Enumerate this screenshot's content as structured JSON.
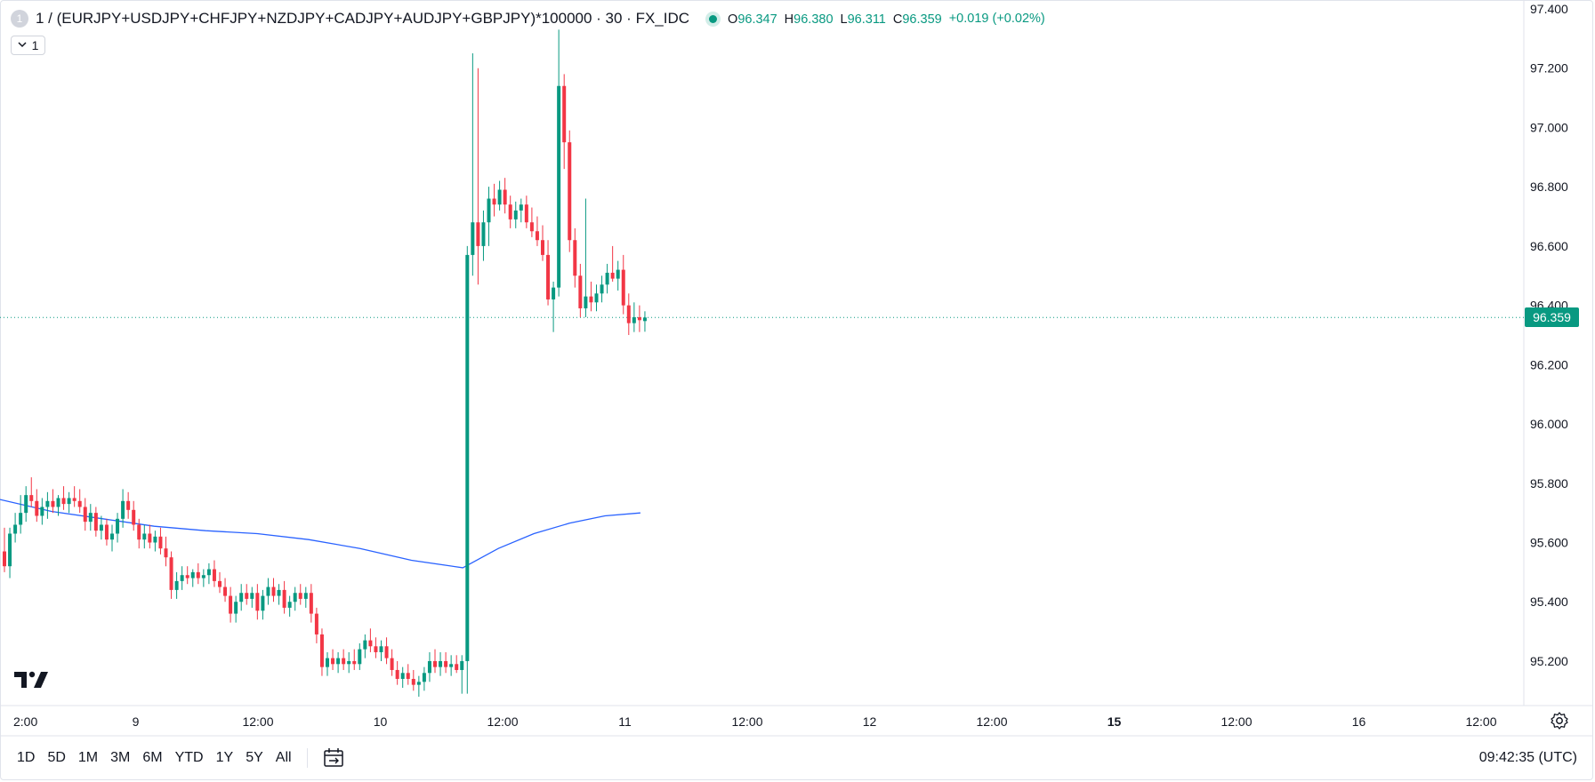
{
  "header": {
    "badge": "1",
    "symbol": "1 / (EURJPY+USDJPY+CHFJPY+NZDJPY+CADJPY+AUDJPY+GBPJPY)*100000 · 30 · FX_IDC",
    "ohlc": [
      {
        "k": "O",
        "v": "96.347"
      },
      {
        "k": "H",
        "v": "96.380"
      },
      {
        "k": "L",
        "v": "96.311"
      },
      {
        "k": "C",
        "v": "96.359"
      }
    ],
    "change": "+0.019 (+0.02%)"
  },
  "interval_toggle": {
    "label": "1",
    "chevron": "chevron-down-icon"
  },
  "last_price": "96.359",
  "colors": {
    "up": "#089981",
    "down": "#f23645",
    "ma": "#2962ff",
    "grid": "#f0f3fa",
    "axis_text": "#131722"
  },
  "bottom_bar": {
    "ranges": [
      "1D",
      "5D",
      "1M",
      "3M",
      "6M",
      "YTD",
      "1Y",
      "5Y",
      "All"
    ],
    "calendar_icon": "calendar-icon",
    "clock": "09:42:35 (UTC)"
  },
  "settings_icon": "gear-icon",
  "logo": "tradingview-logo",
  "chart_data": {
    "type": "candlestick",
    "interval_minutes": 30,
    "ylim": [
      95.05,
      97.43
    ],
    "y_ticks": [
      "97.400",
      "97.200",
      "97.000",
      "96.800",
      "96.600",
      "96.400",
      "96.200",
      "96.000",
      "95.800",
      "95.600",
      "95.400",
      "95.200"
    ],
    "x_ticks": [
      {
        "label": "2:00",
        "bold": false
      },
      {
        "label": "9",
        "bold": false
      },
      {
        "label": "12:00",
        "bold": false
      },
      {
        "label": "10",
        "bold": false
      },
      {
        "label": "12:00",
        "bold": false
      },
      {
        "label": "11",
        "bold": false
      },
      {
        "label": "12:00",
        "bold": false
      },
      {
        "label": "12",
        "bold": false
      },
      {
        "label": "12:00",
        "bold": false
      },
      {
        "label": "15",
        "bold": true
      },
      {
        "label": "12:00",
        "bold": false
      },
      {
        "label": "16",
        "bold": false
      },
      {
        "label": "12:00",
        "bold": false
      }
    ],
    "last_price": 96.359,
    "moving_average": [
      95.745,
      95.705,
      95.68,
      95.655,
      95.64,
      95.63,
      95.61,
      95.58,
      95.54,
      95.515,
      95.58,
      95.63,
      95.665,
      95.69,
      95.7
    ],
    "candles": [
      {
        "o": 95.57,
        "h": 95.65,
        "l": 95.5,
        "c": 95.52
      },
      {
        "o": 95.52,
        "h": 95.65,
        "l": 95.48,
        "c": 95.63
      },
      {
        "o": 95.63,
        "h": 95.7,
        "l": 95.6,
        "c": 95.66
      },
      {
        "o": 95.66,
        "h": 95.76,
        "l": 95.63,
        "c": 95.7
      },
      {
        "o": 95.7,
        "h": 95.79,
        "l": 95.67,
        "c": 95.76
      },
      {
        "o": 95.76,
        "h": 95.82,
        "l": 95.72,
        "c": 95.74
      },
      {
        "o": 95.74,
        "h": 95.78,
        "l": 95.67,
        "c": 95.69
      },
      {
        "o": 95.69,
        "h": 95.75,
        "l": 95.66,
        "c": 95.72
      },
      {
        "o": 95.72,
        "h": 95.77,
        "l": 95.68,
        "c": 95.74
      },
      {
        "o": 95.74,
        "h": 95.78,
        "l": 95.7,
        "c": 95.72
      },
      {
        "o": 95.72,
        "h": 95.76,
        "l": 95.69,
        "c": 95.75
      },
      {
        "o": 95.75,
        "h": 95.79,
        "l": 95.71,
        "c": 95.73
      },
      {
        "o": 95.73,
        "h": 95.77,
        "l": 95.7,
        "c": 95.75
      },
      {
        "o": 95.75,
        "h": 95.79,
        "l": 95.72,
        "c": 95.74
      },
      {
        "o": 95.74,
        "h": 95.78,
        "l": 95.7,
        "c": 95.72
      },
      {
        "o": 95.72,
        "h": 95.75,
        "l": 95.64,
        "c": 95.67
      },
      {
        "o": 95.67,
        "h": 95.73,
        "l": 95.64,
        "c": 95.7
      },
      {
        "o": 95.7,
        "h": 95.72,
        "l": 95.62,
        "c": 95.64
      },
      {
        "o": 95.64,
        "h": 95.69,
        "l": 95.61,
        "c": 95.66
      },
      {
        "o": 95.66,
        "h": 95.68,
        "l": 95.59,
        "c": 95.61
      },
      {
        "o": 95.61,
        "h": 95.66,
        "l": 95.57,
        "c": 95.63
      },
      {
        "o": 95.63,
        "h": 95.7,
        "l": 95.6,
        "c": 95.68
      },
      {
        "o": 95.68,
        "h": 95.78,
        "l": 95.65,
        "c": 95.74
      },
      {
        "o": 95.74,
        "h": 95.77,
        "l": 95.68,
        "c": 95.71
      },
      {
        "o": 95.71,
        "h": 95.74,
        "l": 95.64,
        "c": 95.66
      },
      {
        "o": 95.66,
        "h": 95.68,
        "l": 95.58,
        "c": 95.61
      },
      {
        "o": 95.61,
        "h": 95.66,
        "l": 95.58,
        "c": 95.63
      },
      {
        "o": 95.63,
        "h": 95.66,
        "l": 95.58,
        "c": 95.6
      },
      {
        "o": 95.6,
        "h": 95.64,
        "l": 95.57,
        "c": 95.62
      },
      {
        "o": 95.62,
        "h": 95.65,
        "l": 95.56,
        "c": 95.58
      },
      {
        "o": 95.58,
        "h": 95.62,
        "l": 95.52,
        "c": 95.55
      },
      {
        "o": 95.55,
        "h": 95.57,
        "l": 95.41,
        "c": 95.44
      },
      {
        "o": 95.44,
        "h": 95.5,
        "l": 95.41,
        "c": 95.47
      },
      {
        "o": 95.47,
        "h": 95.52,
        "l": 95.44,
        "c": 95.49
      },
      {
        "o": 95.49,
        "h": 95.52,
        "l": 95.46,
        "c": 95.48
      },
      {
        "o": 95.48,
        "h": 95.51,
        "l": 95.45,
        "c": 95.5
      },
      {
        "o": 95.5,
        "h": 95.53,
        "l": 95.46,
        "c": 95.48
      },
      {
        "o": 95.48,
        "h": 95.51,
        "l": 95.45,
        "c": 95.49
      },
      {
        "o": 95.49,
        "h": 95.53,
        "l": 95.46,
        "c": 95.51
      },
      {
        "o": 95.51,
        "h": 95.54,
        "l": 95.45,
        "c": 95.47
      },
      {
        "o": 95.47,
        "h": 95.5,
        "l": 95.43,
        "c": 95.45
      },
      {
        "o": 95.45,
        "h": 95.48,
        "l": 95.4,
        "c": 95.42
      },
      {
        "o": 95.42,
        "h": 95.45,
        "l": 95.33,
        "c": 95.36
      },
      {
        "o": 95.36,
        "h": 95.42,
        "l": 95.33,
        "c": 95.4
      },
      {
        "o": 95.4,
        "h": 95.46,
        "l": 95.37,
        "c": 95.43
      },
      {
        "o": 95.43,
        "h": 95.46,
        "l": 95.39,
        "c": 95.41
      },
      {
        "o": 95.41,
        "h": 95.45,
        "l": 95.38,
        "c": 95.43
      },
      {
        "o": 95.43,
        "h": 95.46,
        "l": 95.34,
        "c": 95.37
      },
      {
        "o": 95.37,
        "h": 95.44,
        "l": 95.34,
        "c": 95.42
      },
      {
        "o": 95.42,
        "h": 95.48,
        "l": 95.39,
        "c": 95.45
      },
      {
        "o": 95.45,
        "h": 95.48,
        "l": 95.4,
        "c": 95.42
      },
      {
        "o": 95.42,
        "h": 95.46,
        "l": 95.39,
        "c": 95.44
      },
      {
        "o": 95.44,
        "h": 95.47,
        "l": 95.36,
        "c": 95.38
      },
      {
        "o": 95.38,
        "h": 95.42,
        "l": 95.35,
        "c": 95.4
      },
      {
        "o": 95.4,
        "h": 95.45,
        "l": 95.37,
        "c": 95.43
      },
      {
        "o": 95.43,
        "h": 95.46,
        "l": 95.39,
        "c": 95.41
      },
      {
        "o": 95.41,
        "h": 95.45,
        "l": 95.38,
        "c": 95.43
      },
      {
        "o": 95.43,
        "h": 95.46,
        "l": 95.33,
        "c": 95.36
      },
      {
        "o": 95.36,
        "h": 95.38,
        "l": 95.26,
        "c": 95.29
      },
      {
        "o": 95.29,
        "h": 95.31,
        "l": 95.15,
        "c": 95.18
      },
      {
        "o": 95.18,
        "h": 95.23,
        "l": 95.15,
        "c": 95.21
      },
      {
        "o": 95.21,
        "h": 95.24,
        "l": 95.17,
        "c": 95.19
      },
      {
        "o": 95.19,
        "h": 95.23,
        "l": 95.16,
        "c": 95.21
      },
      {
        "o": 95.21,
        "h": 95.24,
        "l": 95.17,
        "c": 95.19
      },
      {
        "o": 95.19,
        "h": 95.23,
        "l": 95.16,
        "c": 95.2
      },
      {
        "o": 95.2,
        "h": 95.24,
        "l": 95.17,
        "c": 95.19
      },
      {
        "o": 95.19,
        "h": 95.26,
        "l": 95.17,
        "c": 95.24
      },
      {
        "o": 95.24,
        "h": 95.29,
        "l": 95.21,
        "c": 95.27
      },
      {
        "o": 95.27,
        "h": 95.31,
        "l": 95.23,
        "c": 95.25
      },
      {
        "o": 95.25,
        "h": 95.28,
        "l": 95.21,
        "c": 95.23
      },
      {
        "o": 95.23,
        "h": 95.27,
        "l": 95.2,
        "c": 95.25
      },
      {
        "o": 95.25,
        "h": 95.28,
        "l": 95.19,
        "c": 95.21
      },
      {
        "o": 95.21,
        "h": 95.24,
        "l": 95.15,
        "c": 95.17
      },
      {
        "o": 95.17,
        "h": 95.2,
        "l": 95.12,
        "c": 95.14
      },
      {
        "o": 95.14,
        "h": 95.18,
        "l": 95.11,
        "c": 95.16
      },
      {
        "o": 95.16,
        "h": 95.19,
        "l": 95.12,
        "c": 95.14
      },
      {
        "o": 95.14,
        "h": 95.17,
        "l": 95.1,
        "c": 95.12
      },
      {
        "o": 95.12,
        "h": 95.15,
        "l": 95.08,
        "c": 95.13
      },
      {
        "o": 95.13,
        "h": 95.18,
        "l": 95.1,
        "c": 95.16
      },
      {
        "o": 95.16,
        "h": 95.23,
        "l": 95.13,
        "c": 95.2
      },
      {
        "o": 95.2,
        "h": 95.24,
        "l": 95.16,
        "c": 95.18
      },
      {
        "o": 95.18,
        "h": 95.23,
        "l": 95.15,
        "c": 95.2
      },
      {
        "o": 95.2,
        "h": 95.23,
        "l": 95.16,
        "c": 95.18
      },
      {
        "o": 95.18,
        "h": 95.22,
        "l": 95.15,
        "c": 95.19
      },
      {
        "o": 95.19,
        "h": 95.22,
        "l": 95.16,
        "c": 95.17
      },
      {
        "o": 95.17,
        "h": 95.22,
        "l": 95.09,
        "c": 95.2
      },
      {
        "o": 95.2,
        "h": 96.6,
        "l": 95.09,
        "c": 96.57
      },
      {
        "o": 96.57,
        "h": 97.25,
        "l": 96.5,
        "c": 96.68
      },
      {
        "o": 96.68,
        "h": 97.2,
        "l": 96.47,
        "c": 96.6
      },
      {
        "o": 96.6,
        "h": 96.72,
        "l": 96.55,
        "c": 96.68
      },
      {
        "o": 96.68,
        "h": 96.8,
        "l": 96.6,
        "c": 96.76
      },
      {
        "o": 96.76,
        "h": 96.81,
        "l": 96.7,
        "c": 96.74
      },
      {
        "o": 96.74,
        "h": 96.82,
        "l": 96.72,
        "c": 96.79
      },
      {
        "o": 96.79,
        "h": 96.83,
        "l": 96.71,
        "c": 96.74
      },
      {
        "o": 96.74,
        "h": 96.77,
        "l": 96.66,
        "c": 96.69
      },
      {
        "o": 96.69,
        "h": 96.75,
        "l": 96.66,
        "c": 96.72
      },
      {
        "o": 96.72,
        "h": 96.76,
        "l": 96.68,
        "c": 96.74
      },
      {
        "o": 96.74,
        "h": 96.77,
        "l": 96.66,
        "c": 96.68
      },
      {
        "o": 96.68,
        "h": 96.73,
        "l": 96.63,
        "c": 96.65
      },
      {
        "o": 96.65,
        "h": 96.7,
        "l": 96.6,
        "c": 96.62
      },
      {
        "o": 96.62,
        "h": 96.67,
        "l": 96.55,
        "c": 96.57
      },
      {
        "o": 96.57,
        "h": 96.62,
        "l": 96.4,
        "c": 96.42
      },
      {
        "o": 96.42,
        "h": 96.48,
        "l": 96.31,
        "c": 96.46
      },
      {
        "o": 96.46,
        "h": 97.33,
        "l": 96.43,
        "c": 97.14
      },
      {
        "o": 97.14,
        "h": 97.18,
        "l": 96.86,
        "c": 96.95
      },
      {
        "o": 96.95,
        "h": 96.99,
        "l": 96.58,
        "c": 96.62
      },
      {
        "o": 96.62,
        "h": 96.66,
        "l": 96.46,
        "c": 96.5
      },
      {
        "o": 96.5,
        "h": 96.54,
        "l": 96.36,
        "c": 96.39
      },
      {
        "o": 96.39,
        "h": 96.76,
        "l": 96.36,
        "c": 96.43
      },
      {
        "o": 96.43,
        "h": 96.48,
        "l": 96.38,
        "c": 96.41
      },
      {
        "o": 96.41,
        "h": 96.47,
        "l": 96.38,
        "c": 96.44
      },
      {
        "o": 96.44,
        "h": 96.5,
        "l": 96.41,
        "c": 96.47
      },
      {
        "o": 96.47,
        "h": 96.54,
        "l": 96.44,
        "c": 96.51
      },
      {
        "o": 96.51,
        "h": 96.6,
        "l": 96.48,
        "c": 96.49
      },
      {
        "o": 96.49,
        "h": 96.55,
        "l": 96.45,
        "c": 96.52
      },
      {
        "o": 96.52,
        "h": 96.57,
        "l": 96.37,
        "c": 96.4
      },
      {
        "o": 96.4,
        "h": 96.44,
        "l": 96.3,
        "c": 96.34
      },
      {
        "o": 96.34,
        "h": 96.41,
        "l": 96.31,
        "c": 96.36
      },
      {
        "o": 96.36,
        "h": 96.4,
        "l": 96.31,
        "c": 96.35
      },
      {
        "o": 96.347,
        "h": 96.38,
        "l": 96.311,
        "c": 96.359
      }
    ]
  }
}
